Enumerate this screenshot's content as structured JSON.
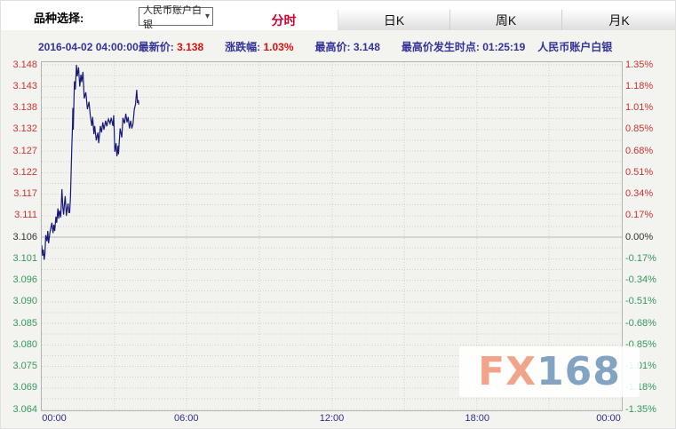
{
  "header": {
    "variety_label": "品种选择:",
    "variety_select": {
      "value": "人民币账户白银"
    },
    "tabs": [
      {
        "label": "分时",
        "active": true
      },
      {
        "label": "日K",
        "active": false
      },
      {
        "label": "周K",
        "active": false
      },
      {
        "label": "月K",
        "active": false
      }
    ]
  },
  "info_bar": {
    "datetime": "2016-04-02 04:00:00",
    "latest_label": "最新价:",
    "latest_value": "3.138",
    "change_label": "涨跌幅:",
    "change_value": "1.03%",
    "high_label": "最高价:",
    "high_value": "3.148",
    "high_time_label": "最高价发生时点:",
    "high_time_value": "01:25:19",
    "instrument": "人民币账户白银"
  },
  "watermark": {
    "fx": "FX",
    "num": "168"
  },
  "colors": {
    "up": "#cc3333",
    "down": "#36975f",
    "neutral": "#333333",
    "line": "#181878",
    "accent_red": "#cc0033",
    "navy": "#333399",
    "grid": "#cfcfcc",
    "grid_mid": "#b8b8b5"
  },
  "chart_data": {
    "type": "line",
    "title": "人民币账户白银 分时",
    "base_price": 3.106,
    "price_max": 3.148,
    "price_min": 3.064,
    "x_axis": {
      "labels": [
        "00:00",
        "06:00",
        "12:00",
        "18:00",
        "00:00"
      ],
      "label_hours": [
        0,
        6,
        12,
        18,
        24
      ],
      "range_minutes": [
        0,
        1440
      ],
      "grid_every_hours": 3
    },
    "y_axis_left": {
      "labels": [
        "3.148",
        "3.143",
        "3.138",
        "3.132",
        "3.127",
        "3.122",
        "3.117",
        "3.111",
        "3.106",
        "3.101",
        "3.096",
        "3.090",
        "3.085",
        "3.080",
        "3.075",
        "3.069",
        "3.064"
      ]
    },
    "y_axis_right": {
      "labels": [
        "1.35%",
        "1.18%",
        "1.01%",
        "0.85%",
        "0.68%",
        "0.51%",
        "0.34%",
        "0.17%",
        "0.00%",
        "-0.17%",
        "-0.34%",
        "-0.51%",
        "-0.68%",
        "-0.85%",
        "-1.01%",
        "-1.18%",
        "-1.35%"
      ]
    },
    "series": [
      {
        "name": "price",
        "points": [
          [
            0,
            3.104
          ],
          [
            2,
            3.1015
          ],
          [
            4,
            3.103
          ],
          [
            6,
            3.1005
          ],
          [
            8,
            3.102
          ],
          [
            10,
            3.1065
          ],
          [
            13,
            3.105
          ],
          [
            15,
            3.1075
          ],
          [
            17,
            3.1045
          ],
          [
            20,
            3.107
          ],
          [
            23,
            3.1085
          ],
          [
            25,
            3.1095
          ],
          [
            28,
            3.107
          ],
          [
            30,
            3.109
          ],
          [
            32,
            3.1075
          ],
          [
            35,
            3.111
          ],
          [
            37,
            3.1095
          ],
          [
            40,
            3.113
          ],
          [
            42,
            3.1105
          ],
          [
            44,
            3.1125
          ],
          [
            47,
            3.1108
          ],
          [
            50,
            3.1177
          ],
          [
            52,
            3.1135
          ],
          [
            54,
            3.1115
          ],
          [
            56,
            3.114
          ],
          [
            58,
            3.116
          ],
          [
            61,
            3.1112
          ],
          [
            63,
            3.113
          ],
          [
            65,
            3.1142
          ],
          [
            67,
            3.112
          ],
          [
            69,
            3.112
          ],
          [
            71,
            3.1155
          ],
          [
            74,
            3.127
          ],
          [
            76,
            3.133
          ],
          [
            77,
            3.1375
          ],
          [
            78,
            3.1322
          ],
          [
            80,
            3.1405
          ],
          [
            81,
            3.144
          ],
          [
            83,
            3.142
          ],
          [
            86,
            3.148
          ],
          [
            88,
            3.1452
          ],
          [
            91,
            3.1474
          ],
          [
            94,
            3.1427
          ],
          [
            97,
            3.1456
          ],
          [
            99,
            3.1438
          ],
          [
            102,
            3.1463
          ],
          [
            105,
            3.1398
          ],
          [
            109,
            3.1413
          ],
          [
            113,
            3.1372
          ],
          [
            117,
            3.139
          ],
          [
            120,
            3.1357
          ],
          [
            124,
            3.1331
          ],
          [
            126,
            3.1353
          ],
          [
            129,
            3.1311
          ],
          [
            131,
            3.1331
          ],
          [
            135,
            3.1296
          ],
          [
            139,
            3.1315
          ],
          [
            141,
            3.1289
          ],
          [
            145,
            3.1331
          ],
          [
            148,
            3.1315
          ],
          [
            151,
            3.134
          ],
          [
            154,
            3.1322
          ],
          [
            158,
            3.1344
          ],
          [
            161,
            3.133
          ],
          [
            165,
            3.1348
          ],
          [
            169,
            3.1337
          ],
          [
            172,
            3.1351
          ],
          [
            176,
            3.1331
          ],
          [
            178,
            3.1357
          ],
          [
            181,
            3.1268
          ],
          [
            184,
            3.1289
          ],
          [
            186,
            3.1257
          ],
          [
            189,
            3.1283
          ],
          [
            190,
            3.1262
          ],
          [
            194,
            3.1325
          ],
          [
            198,
            3.1303
          ],
          [
            201,
            3.1351
          ],
          [
            205,
            3.1337
          ],
          [
            208,
            3.1361
          ],
          [
            211,
            3.134
          ],
          [
            214,
            3.1353
          ],
          [
            217,
            3.1325
          ],
          [
            220,
            3.1344
          ],
          [
            223,
            3.1325
          ],
          [
            226,
            3.1337
          ],
          [
            229,
            3.1372
          ],
          [
            232,
            3.1383
          ],
          [
            235,
            3.1419
          ],
          [
            237,
            3.1387
          ],
          [
            239,
            3.1394
          ],
          [
            240,
            3.1383
          ]
        ]
      }
    ]
  }
}
